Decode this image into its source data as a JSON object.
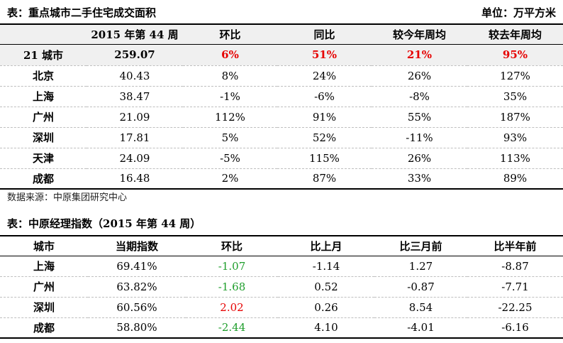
{
  "table1": {
    "title": "表：重点城市二手住宅成交面积",
    "unit": "单位：万平方米",
    "headers": [
      "",
      "2015 年第 44 周",
      "环比",
      "同比",
      "较今年周均",
      "较去年周均"
    ],
    "rows": [
      [
        "21 城市",
        "259.07",
        "6%",
        "51%",
        "21%",
        "95%"
      ],
      [
        "北京",
        "40.43",
        "8%",
        "24%",
        "26%",
        "127%"
      ],
      [
        "上海",
        "38.47",
        "-1%",
        "-6%",
        "-8%",
        "35%"
      ],
      [
        "广州",
        "21.09",
        "112%",
        "91%",
        "55%",
        "187%"
      ],
      [
        "深圳",
        "17.81",
        "5%",
        "52%",
        "-11%",
        "93%"
      ],
      [
        "天津",
        "24.09",
        "-5%",
        "115%",
        "26%",
        "113%"
      ],
      [
        "成都",
        "16.48",
        "2%",
        "87%",
        "33%",
        "89%"
      ]
    ]
  },
  "source": "数据来源：中原集团研究中心",
  "table2": {
    "title": "表：中原经理指数（2015 年第 44 周）",
    "headers": [
      "城市",
      "当期指数",
      "环比",
      "比上月",
      "比三月前",
      "比半年前"
    ],
    "rows": [
      [
        "上海",
        "69.41%",
        "-1.07",
        "-1.14",
        "1.27",
        "-8.87"
      ],
      [
        "广州",
        "63.82%",
        "-1.68",
        "0.52",
        "-0.87",
        "-7.71"
      ],
      [
        "深圳",
        "60.56%",
        "2.02",
        "0.26",
        "8.54",
        "-22.25"
      ],
      [
        "成都",
        "58.80%",
        "-2.44",
        "4.10",
        "-4.01",
        "-6.16"
      ]
    ],
    "colors": {
      "positive": "#e60000",
      "negative": "#1f9e2c"
    }
  }
}
